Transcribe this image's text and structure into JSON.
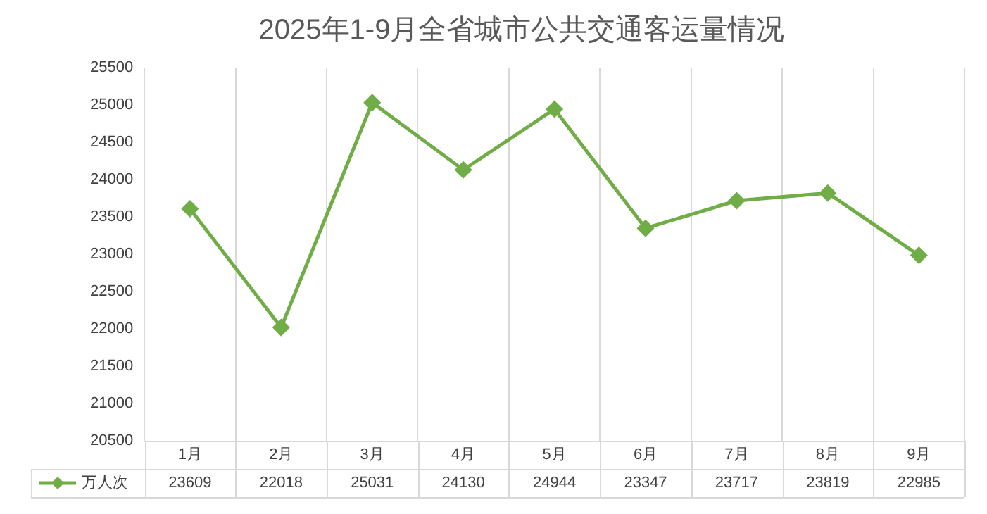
{
  "chart_data": {
    "type": "line",
    "title": "2025年1-9月全省城市公共交通客运量情况",
    "categories": [
      "1月",
      "2月",
      "3月",
      "4月",
      "5月",
      "6月",
      "7月",
      "8月",
      "9月"
    ],
    "series": [
      {
        "name": "万人次",
        "color": "#70ad47",
        "values": [
          23609,
          22018,
          25031,
          24130,
          24944,
          23347,
          23717,
          23819,
          22985
        ]
      }
    ],
    "ylim": [
      20500,
      25500
    ],
    "yticks": [
      20500,
      21000,
      21500,
      22000,
      22500,
      23000,
      23500,
      24000,
      24500,
      25000,
      25500
    ],
    "grid": "x",
    "legend": "bottom left",
    "marker": "diamond",
    "line_style": "solid",
    "data_labels": true
  }
}
